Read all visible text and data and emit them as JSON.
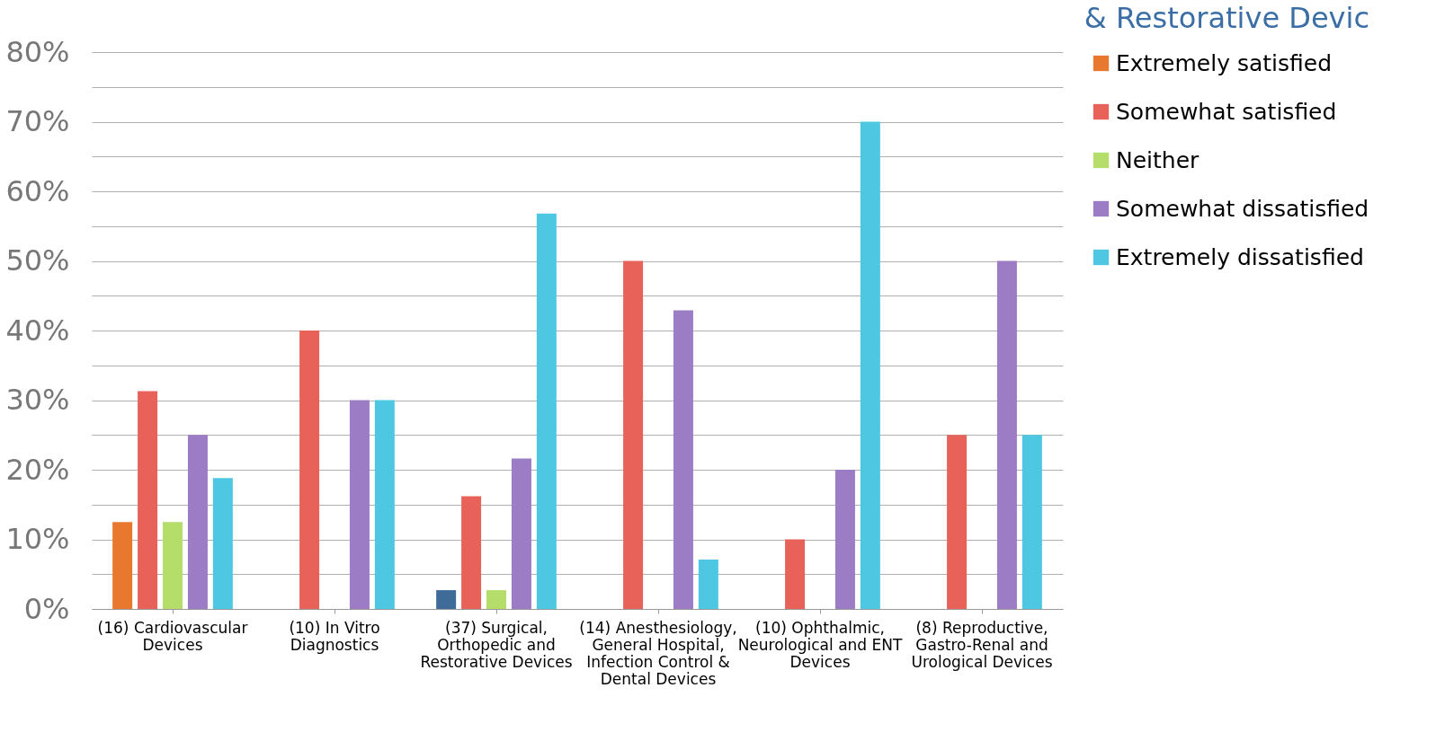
{
  "chart_data": {
    "type": "bar",
    "title": "& Restorative Devic",
    "categories": [
      "(16) Cardiovascular Devices",
      "(10) In Vitro Diagnostics",
      "(37) Surgical, Orthopedic and Restorative Devices",
      "(14) Anesthesiology, General Hospital, Infection Control & Dental Devices",
      "(10) Ophthalmic, Neurological and ENT Devices",
      "(8) Reproductive, Gastro-Renal and Urological Devices"
    ],
    "series": [
      {
        "name": "Extremely satisfied",
        "color": "#e8782e",
        "colors": [
          "#e8782e",
          "#e8782e",
          "#3e6b98",
          "#e8782e",
          "#e8782e",
          "#e8782e"
        ],
        "values": [
          12.5,
          0,
          2.7,
          0,
          0,
          0
        ]
      },
      {
        "name": "Somewhat satisfied",
        "color": "#e8625a",
        "values": [
          31.3,
          40,
          16.2,
          50,
          10,
          25
        ]
      },
      {
        "name": "Neither",
        "color": "#b5dd6a",
        "values": [
          12.5,
          0,
          2.7,
          0,
          0,
          0
        ]
      },
      {
        "name": "Somewhat dissatisfied",
        "color": "#9c7cc4",
        "values": [
          25,
          30,
          21.6,
          42.9,
          20,
          50
        ]
      },
      {
        "name": "Extremely dissatisfied",
        "color": "#4ec8e2",
        "values": [
          18.8,
          30,
          56.8,
          7.1,
          70,
          25
        ]
      }
    ],
    "ylim": [
      0,
      80
    ],
    "yticks": [
      {
        "value": 0,
        "label": "0%"
      },
      {
        "value": 5,
        "label": null
      },
      {
        "value": 10,
        "label": "10%"
      },
      {
        "value": 15,
        "label": null
      },
      {
        "value": 20,
        "label": "20%"
      },
      {
        "value": 25,
        "label": null
      },
      {
        "value": 30,
        "label": "30%"
      },
      {
        "value": 35,
        "label": null
      },
      {
        "value": 40,
        "label": "40%"
      },
      {
        "value": 45,
        "label": null
      },
      {
        "value": 50,
        "label": "50%"
      },
      {
        "value": 55,
        "label": null
      },
      {
        "value": 60,
        "label": "60%"
      },
      {
        "value": 65,
        "label": null
      },
      {
        "value": 70,
        "label": "70%"
      },
      {
        "value": 75,
        "label": null
      },
      {
        "value": 80,
        "label": "80%"
      }
    ],
    "grid": "y",
    "legend": "right"
  }
}
